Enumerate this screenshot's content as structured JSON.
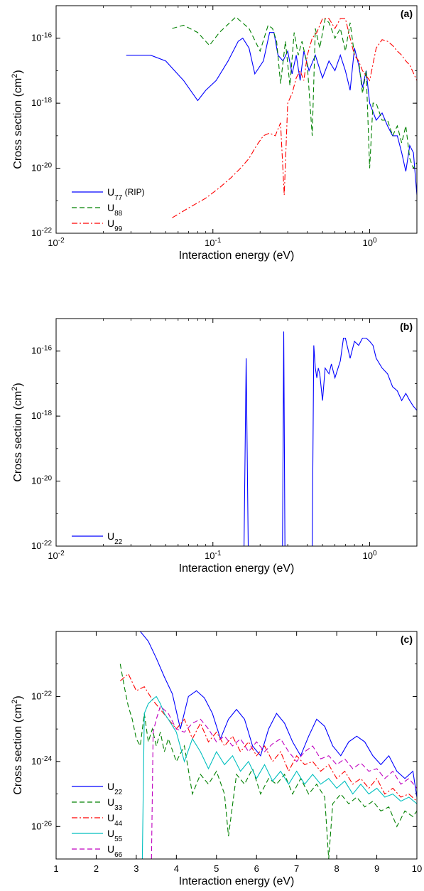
{
  "chart_data": [
    {
      "type": "line",
      "panel_label": "(a)",
      "xlabel": "Interaction energy (eV)",
      "ylabel": "Cross section (cm",
      "ylabel_sup": "2",
      "ylabel_end": ")",
      "x_scale": "log",
      "y_scale": "log",
      "xlim": [
        0.01,
        2.0
      ],
      "ylim": [
        1e-22,
        1e-15
      ],
      "x_ticks": [
        {
          "v": 0.01,
          "base": "10",
          "exp": "-2"
        },
        {
          "v": 0.1,
          "base": "10",
          "exp": "-1"
        },
        {
          "v": 1,
          "base": "10",
          "exp": "0"
        }
      ],
      "y_ticks": [
        {
          "v": 1e-22,
          "base": "10",
          "exp": "-22"
        },
        {
          "v": 1e-20,
          "base": "10",
          "exp": "-20"
        },
        {
          "v": 1e-18,
          "base": "10",
          "exp": "-18"
        },
        {
          "v": 1e-16,
          "base": "10",
          "exp": "-16"
        }
      ],
      "legend_position": "bottom-left",
      "series": [
        {
          "label": "U",
          "sub": "77",
          "suffix": " (RIP)",
          "color": "#0000ff",
          "dash": "",
          "x": [
            0.028,
            0.04,
            0.05,
            0.065,
            0.08,
            0.09,
            0.105,
            0.125,
            0.145,
            0.155,
            0.17,
            0.185,
            0.21,
            0.23,
            0.245,
            0.26,
            0.28,
            0.3,
            0.32,
            0.34,
            0.36,
            0.38,
            0.41,
            0.45,
            0.5,
            0.55,
            0.6,
            0.65,
            0.7,
            0.75,
            0.8,
            0.85,
            0.9,
            0.95,
            1.0,
            1.1,
            1.2,
            1.3,
            1.4,
            1.5,
            1.6,
            1.7,
            1.8,
            1.9,
            2.0
          ],
          "y": [
            3e-17,
            3e-17,
            2e-17,
            5e-18,
            1.2e-18,
            2.5e-18,
            5e-18,
            2e-17,
            8e-17,
            1e-16,
            5e-17,
            8e-18,
            2e-17,
            1.5e-16,
            1.5e-16,
            3e-17,
            2e-17,
            4e-17,
            8e-18,
            3e-17,
            5e-18,
            4e-17,
            1e-17,
            3e-17,
            6e-18,
            2e-17,
            1e-17,
            3e-17,
            1e-17,
            2.5e-18,
            5e-17,
            1.5e-17,
            3e-18,
            1e-17,
            1e-18,
            3e-19,
            5e-19,
            2e-19,
            1e-19,
            1e-19,
            3e-20,
            8e-21,
            5e-20,
            3e-20,
            1.5e-21
          ]
        },
        {
          "label": "U",
          "sub": "88",
          "suffix": "",
          "color": "#008000",
          "dash": "7,4",
          "x": [
            0.055,
            0.065,
            0.08,
            0.095,
            0.11,
            0.14,
            0.17,
            0.2,
            0.225,
            0.24,
            0.255,
            0.27,
            0.29,
            0.31,
            0.33,
            0.35,
            0.37,
            0.4,
            0.43,
            0.45,
            0.48,
            0.52,
            0.55,
            0.6,
            0.65,
            0.7,
            0.75,
            0.8,
            0.85,
            0.9,
            0.95,
            1.0,
            1.05,
            1.1,
            1.2,
            1.3,
            1.4,
            1.5,
            1.6,
            1.7,
            1.8,
            1.9,
            2.0
          ],
          "y": [
            2e-16,
            2.5e-16,
            1.5e-16,
            6e-17,
            1.5e-16,
            4.5e-16,
            2e-16,
            4e-17,
            2.5e-16,
            2e-16,
            8e-17,
            4e-18,
            8e-17,
            3.5e-18,
            1.5e-16,
            3e-17,
            8e-17,
            1.5e-17,
            1e-19,
            2e-16,
            5e-17,
            4e-16,
            3e-16,
            1e-16,
            2e-16,
            4e-17,
            3e-16,
            3e-17,
            2e-17,
            2e-18,
            1e-17,
            1e-20,
            1e-18,
            1e-18,
            3e-19,
            3e-19,
            1e-19,
            2e-19,
            6e-20,
            2e-19,
            2e-20,
            1e-20,
            1.5e-20
          ]
        },
        {
          "label": "U",
          "sub": "99",
          "suffix": "",
          "color": "#ff0000",
          "dash": "8,3,2,3",
          "x": [
            0.055,
            0.07,
            0.09,
            0.11,
            0.13,
            0.15,
            0.17,
            0.19,
            0.21,
            0.23,
            0.25,
            0.27,
            0.285,
            0.3,
            0.32,
            0.34,
            0.36,
            0.38,
            0.4,
            0.43,
            0.46,
            0.5,
            0.55,
            0.6,
            0.65,
            0.7,
            0.75,
            0.8,
            0.85,
            0.9,
            1.0,
            1.1,
            1.2,
            1.3,
            1.4,
            1.5,
            1.6,
            1.7,
            1.8,
            2.0
          ],
          "y": [
            3e-22,
            6e-22,
            1.2e-21,
            2.5e-21,
            5e-21,
            1e-20,
            2e-20,
            5e-20,
            1e-19,
            1.2e-19,
            1e-19,
            2.5e-19,
            1.5e-21,
            1e-18,
            2e-18,
            6e-18,
            1e-17,
            5e-18,
            3e-17,
            1e-16,
            1.5e-16,
            4e-16,
            4e-16,
            2e-16,
            4e-16,
            4e-16,
            1e-16,
            3e-17,
            2e-17,
            1e-17,
            5e-18,
            5e-17,
            9e-17,
            8e-17,
            6e-17,
            4e-17,
            3e-17,
            2e-17,
            1.5e-17,
            5e-18
          ]
        }
      ]
    },
    {
      "type": "line",
      "panel_label": "(b)",
      "xlabel": "Interaction energy (eV)",
      "ylabel": "Cross section (cm",
      "ylabel_sup": "2",
      "ylabel_end": ")",
      "x_scale": "log",
      "y_scale": "log",
      "xlim": [
        0.01,
        2.0
      ],
      "ylim": [
        1e-22,
        1e-15
      ],
      "x_ticks": [
        {
          "v": 0.01,
          "base": "10",
          "exp": "-2"
        },
        {
          "v": 0.1,
          "base": "10",
          "exp": "-1"
        },
        {
          "v": 1,
          "base": "10",
          "exp": "0"
        }
      ],
      "y_ticks": [
        {
          "v": 1e-22,
          "base": "10",
          "exp": "-22"
        },
        {
          "v": 1e-20,
          "base": "10",
          "exp": "-20"
        },
        {
          "v": 1e-18,
          "base": "10",
          "exp": "-18"
        },
        {
          "v": 1e-16,
          "base": "10",
          "exp": "-16"
        }
      ],
      "legend_position": "bottom-left",
      "series": [
        {
          "label": "U",
          "sub": "22",
          "suffix": "",
          "color": "#0000ff",
          "dash": "",
          "x": [
            0.158,
            0.163,
            0.168,
            0.278,
            0.283,
            0.288,
            0.43,
            0.44,
            0.45,
            0.46,
            0.47,
            0.48,
            0.5,
            0.52,
            0.55,
            0.57,
            0.6,
            0.65,
            0.68,
            0.7,
            0.75,
            0.8,
            0.85,
            0.9,
            0.95,
            1.0,
            1.05,
            1.1,
            1.2,
            1.3,
            1.4,
            1.5,
            1.6,
            1.7,
            1.8,
            1.9,
            2.0
          ],
          "y": [
            1e-22,
            6e-17,
            1e-22,
            1e-22,
            4e-16,
            1e-22,
            1e-22,
            1.5e-16,
            3e-17,
            1.5e-17,
            3e-17,
            2e-17,
            3e-18,
            3e-17,
            2e-17,
            4e-17,
            1.5e-17,
            5e-17,
            2.5e-16,
            2.5e-16,
            6e-17,
            2e-16,
            1.5e-16,
            2.5e-16,
            2.5e-16,
            2e-16,
            1.5e-16,
            6e-17,
            3e-17,
            2e-17,
            8e-18,
            6e-18,
            3e-18,
            5e-18,
            3e-18,
            2e-18,
            1.5e-18
          ]
        }
      ]
    },
    {
      "type": "line",
      "panel_label": "(c)",
      "xlabel": "Interaction energy (eV)",
      "ylabel": "Cross section (cm",
      "ylabel_sup": "2",
      "ylabel_end": ")",
      "x_scale": "linear",
      "y_scale": "log",
      "xlim": [
        1,
        10
      ],
      "ylim": [
        1e-27,
        1e-20
      ],
      "x_ticks": [
        {
          "v": 1,
          "base": "1",
          "exp": ""
        },
        {
          "v": 2,
          "base": "2",
          "exp": ""
        },
        {
          "v": 3,
          "base": "3",
          "exp": ""
        },
        {
          "v": 4,
          "base": "4",
          "exp": ""
        },
        {
          "v": 5,
          "base": "5",
          "exp": ""
        },
        {
          "v": 6,
          "base": "6",
          "exp": ""
        },
        {
          "v": 7,
          "base": "7",
          "exp": ""
        },
        {
          "v": 8,
          "base": "8",
          "exp": ""
        },
        {
          "v": 9,
          "base": "9",
          "exp": ""
        },
        {
          "v": 10,
          "base": "10",
          "exp": ""
        }
      ],
      "y_ticks": [
        {
          "v": 1e-26,
          "base": "10",
          "exp": "-26"
        },
        {
          "v": 1e-24,
          "base": "10",
          "exp": "-24"
        },
        {
          "v": 1e-22,
          "base": "10",
          "exp": "-22"
        }
      ],
      "legend_position": "bottom-left",
      "series": [
        {
          "label": "U",
          "sub": "22",
          "suffix": "",
          "color": "#0000ff",
          "dash": "",
          "x": [
            3.1,
            3.3,
            3.5,
            3.7,
            3.9,
            4.1,
            4.3,
            4.5,
            4.7,
            4.9,
            5.1,
            5.3,
            5.5,
            5.7,
            5.9,
            6.1,
            6.3,
            6.5,
            6.7,
            6.9,
            7.1,
            7.3,
            7.5,
            7.7,
            7.9,
            8.1,
            8.3,
            8.5,
            8.7,
            8.9,
            9.1,
            9.3,
            9.5,
            9.7,
            9.9,
            10.0
          ],
          "y": [
            1e-20,
            5e-21,
            1.5e-21,
            4e-22,
            1.2e-22,
            1e-23,
            1e-22,
            1.5e-22,
            9e-23,
            3e-23,
            5e-24,
            2e-23,
            4e-23,
            2e-23,
            3e-24,
            1.5e-24,
            1e-23,
            3e-23,
            1.5e-23,
            4e-24,
            1.5e-24,
            6e-24,
            2e-23,
            1.2e-23,
            3e-24,
            1.5e-24,
            4e-24,
            6e-24,
            4e-24,
            1.5e-24,
            8e-25,
            1.5e-24,
            5e-25,
            3e-25,
            5e-25,
            8e-26
          ]
        },
        {
          "label": "U",
          "sub": "33",
          "suffix": "",
          "color": "#008000",
          "dash": "7,4",
          "x": [
            2.6,
            2.7,
            2.8,
            2.9,
            3.0,
            3.1,
            3.2,
            3.3,
            3.4,
            3.5,
            3.6,
            3.7,
            3.8,
            4.0,
            4.2,
            4.4,
            4.6,
            4.8,
            5.0,
            5.2,
            5.3,
            5.5,
            5.7,
            5.9,
            6.1,
            6.3,
            6.5,
            6.7,
            6.9,
            7.1,
            7.3,
            7.5,
            7.7,
            7.8,
            7.9,
            8.1,
            8.3,
            8.5,
            8.7,
            8.9,
            9.1,
            9.3,
            9.5,
            9.7,
            9.9,
            10.0
          ],
          "y": [
            1e-21,
            2e-22,
            5e-23,
            2e-23,
            5e-24,
            3e-24,
            3e-23,
            4e-24,
            1e-23,
            3e-24,
            8e-24,
            2e-24,
            5e-24,
            1e-24,
            3e-24,
            1e-25,
            4e-25,
            2e-25,
            5e-25,
            1e-25,
            5e-27,
            4e-25,
            2e-25,
            6e-25,
            1e-25,
            3e-25,
            2e-25,
            4e-25,
            1e-25,
            3e-25,
            1e-25,
            2e-25,
            8e-26,
            1e-27,
            5e-26,
            1e-25,
            5e-26,
            8e-26,
            4e-26,
            6e-26,
            3e-26,
            4e-26,
            1e-26,
            3e-26,
            2e-26,
            3e-26
          ]
        },
        {
          "label": "U",
          "sub": "44",
          "suffix": "",
          "color": "#ff0000",
          "dash": "8,3,2,3",
          "x": [
            2.6,
            2.8,
            3.0,
            3.2,
            3.4,
            3.6,
            3.8,
            4.0,
            4.2,
            4.4,
            4.6,
            4.8,
            5.0,
            5.2,
            5.4,
            5.6,
            5.8,
            6.0,
            6.2,
            6.4,
            6.6,
            6.8,
            7.0,
            7.2,
            7.4,
            7.6,
            7.8,
            8.0,
            8.2,
            8.4,
            8.6,
            8.8,
            9.0,
            9.2,
            9.4,
            9.6,
            9.8,
            10.0
          ],
          "y": [
            3e-22,
            5e-22,
            1.5e-22,
            2e-22,
            8e-23,
            4e-23,
            2e-23,
            1e-23,
            2e-23,
            5e-24,
            1.5e-23,
            4e-24,
            8e-24,
            3e-24,
            6e-24,
            2e-24,
            4e-24,
            1.5e-24,
            3e-24,
            1e-24,
            2e-24,
            5e-25,
            1.5e-24,
            8e-25,
            1e-24,
            5e-25,
            8e-25,
            3e-25,
            5e-25,
            2e-25,
            3e-25,
            1.5e-25,
            3e-25,
            1e-25,
            1.5e-25,
            8e-26,
            1e-25,
            6e-26
          ]
        },
        {
          "label": "U",
          "sub": "55",
          "suffix": "",
          "color": "#00bfbf",
          "dash": "",
          "x": [
            3.15,
            3.2,
            3.3,
            3.4,
            3.5,
            3.6,
            3.7,
            3.8,
            4.0,
            4.2,
            4.4,
            4.6,
            4.8,
            5.0,
            5.2,
            5.4,
            5.6,
            5.8,
            6.0,
            6.2,
            6.4,
            6.6,
            6.8,
            7.0,
            7.2,
            7.4,
            7.6,
            7.8,
            8.0,
            8.2,
            8.4,
            8.6,
            8.8,
            9.0,
            9.2,
            9.4,
            9.6,
            9.8,
            10.0
          ],
          "y": [
            1e-27,
            3e-23,
            6e-23,
            8e-23,
            1e-22,
            6e-23,
            3e-23,
            2e-23,
            8e-24,
            1e-24,
            5e-24,
            2e-24,
            6e-25,
            2e-24,
            8e-25,
            1.5e-24,
            5e-25,
            1e-24,
            3e-25,
            8e-25,
            2.5e-25,
            5e-25,
            2e-25,
            5e-25,
            2e-25,
            4e-25,
            2e-25,
            3e-25,
            1.5e-25,
            2.5e-25,
            1e-25,
            2e-25,
            1e-25,
            1.5e-25,
            8e-26,
            1e-25,
            6e-26,
            8e-26,
            5e-26
          ]
        },
        {
          "label": "U",
          "sub": "66",
          "suffix": "",
          "color": "#bf00bf",
          "dash": "7,4",
          "x": [
            3.38,
            3.42,
            3.5,
            3.6,
            3.8,
            4.0,
            4.2,
            4.4,
            4.6,
            4.8,
            5.0,
            5.2,
            5.4,
            5.6,
            5.8,
            6.0,
            6.2,
            6.4,
            6.6,
            6.8,
            7.0,
            7.2,
            7.4,
            7.6,
            7.8,
            8.0,
            8.2,
            8.4,
            8.6,
            8.8,
            9.0,
            9.2,
            9.4,
            9.6,
            9.8,
            10.0
          ],
          "y": [
            1e-27,
            8e-24,
            2e-23,
            5e-23,
            3e-23,
            1e-23,
            8e-24,
            1.5e-23,
            2e-23,
            1e-23,
            4e-24,
            6e-24,
            3e-24,
            5e-24,
            2e-24,
            4e-24,
            2e-24,
            3.5e-24,
            5e-24,
            2e-24,
            1e-24,
            2e-24,
            3e-24,
            1.2e-24,
            1.5e-24,
            8e-25,
            1.2e-24,
            6e-25,
            9e-25,
            5e-25,
            6e-25,
            3e-25,
            5e-25,
            2e-25,
            3e-25,
            1.5e-25
          ]
        }
      ]
    }
  ]
}
